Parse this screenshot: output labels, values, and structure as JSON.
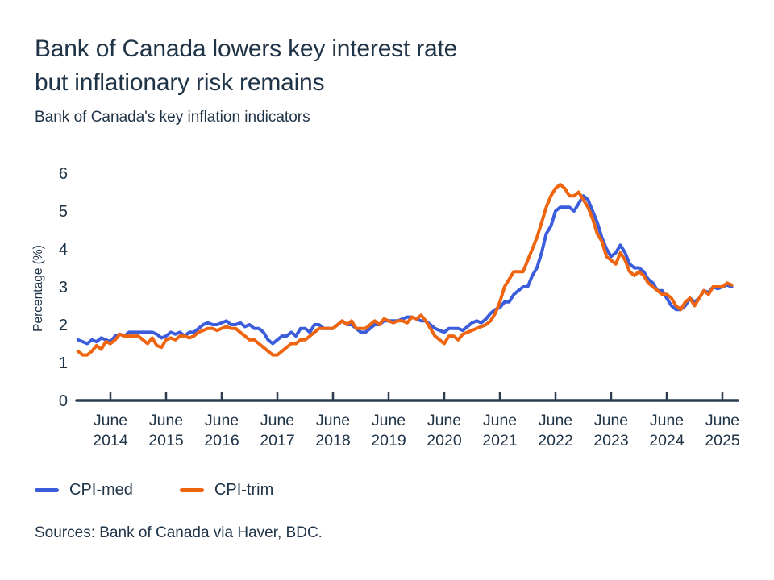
{
  "header": {
    "title_line1": "Bank of Canada lowers key interest rate",
    "title_line2": "but inflationary risk remains",
    "subtitle": "Bank of Canada's key inflation indicators"
  },
  "footer": {
    "source": "Sources: Bank of Canada via Haver, BDC."
  },
  "legend": [
    {
      "label": "CPI-med",
      "color": "#3b5cdb"
    },
    {
      "label": "CPI-trim",
      "color": "#ef650f"
    }
  ],
  "colors": {
    "text": "#203448",
    "axis": "#2c3d4f",
    "background": "#ffffff"
  },
  "chart_data": {
    "type": "line",
    "title": "Bank of Canada's key inflation indicators",
    "xlabel": "",
    "ylabel": "Percentage (%)",
    "ylim": [
      0,
      6
    ],
    "y_ticks": [
      0,
      1,
      2,
      3,
      4,
      5,
      6
    ],
    "grid": false,
    "legend_position": "bottom-left",
    "x_frequency": "monthly",
    "x_start_month": "2013-11",
    "x_end_month": "2025-08",
    "x_tick_label_month": "June",
    "x_tick_years": [
      "2014",
      "2015",
      "2016",
      "2017",
      "2018",
      "2019",
      "2020",
      "2021",
      "2022",
      "2023",
      "2024",
      "2025"
    ],
    "series": [
      {
        "name": "CPI-med",
        "color": "#3b5cdb",
        "values": [
          1.6,
          1.55,
          1.5,
          1.6,
          1.55,
          1.65,
          1.6,
          1.55,
          1.7,
          1.75,
          1.7,
          1.8,
          1.8,
          1.8,
          1.8,
          1.8,
          1.8,
          1.75,
          1.65,
          1.7,
          1.8,
          1.75,
          1.8,
          1.7,
          1.8,
          1.8,
          1.9,
          2.0,
          2.05,
          2.0,
          2.0,
          2.05,
          2.1,
          2.0,
          2.0,
          2.05,
          1.95,
          2.0,
          1.9,
          1.9,
          1.8,
          1.6,
          1.5,
          1.6,
          1.7,
          1.7,
          1.8,
          1.7,
          1.9,
          1.9,
          1.8,
          2.0,
          2.0,
          1.9,
          1.9,
          1.9,
          2.0,
          2.1,
          2.0,
          2.0,
          1.9,
          1.8,
          1.8,
          1.9,
          2.0,
          2.0,
          2.1,
          2.1,
          2.1,
          2.1,
          2.15,
          2.2,
          2.2,
          2.15,
          2.1,
          2.1,
          2.0,
          1.9,
          1.85,
          1.8,
          1.9,
          1.9,
          1.9,
          1.85,
          1.95,
          2.05,
          2.1,
          2.05,
          2.15,
          2.3,
          2.4,
          2.45,
          2.6,
          2.6,
          2.8,
          2.9,
          3.0,
          3.0,
          3.3,
          3.5,
          3.9,
          4.4,
          4.6,
          5.0,
          5.1,
          5.1,
          5.1,
          5.0,
          5.2,
          5.4,
          5.3,
          5.0,
          4.7,
          4.3,
          4.0,
          3.8,
          3.9,
          4.1,
          3.9,
          3.6,
          3.5,
          3.5,
          3.4,
          3.2,
          3.1,
          2.9,
          2.9,
          2.7,
          2.5,
          2.4,
          2.4,
          2.5,
          2.7,
          2.6,
          2.7,
          2.9,
          2.85,
          3.0,
          2.95,
          3.0,
          3.05,
          3.0
        ]
      },
      {
        "name": "CPI-trim",
        "color": "#ef650f",
        "values": [
          1.3,
          1.2,
          1.2,
          1.3,
          1.45,
          1.35,
          1.55,
          1.5,
          1.6,
          1.75,
          1.7,
          1.7,
          1.7,
          1.7,
          1.6,
          1.5,
          1.65,
          1.45,
          1.4,
          1.6,
          1.65,
          1.6,
          1.7,
          1.7,
          1.65,
          1.7,
          1.8,
          1.85,
          1.9,
          1.9,
          1.85,
          1.9,
          1.95,
          1.9,
          1.9,
          1.8,
          1.7,
          1.6,
          1.6,
          1.5,
          1.4,
          1.3,
          1.2,
          1.2,
          1.3,
          1.4,
          1.5,
          1.5,
          1.6,
          1.6,
          1.7,
          1.8,
          1.9,
          1.9,
          1.9,
          1.9,
          2.0,
          2.1,
          2.0,
          2.1,
          1.9,
          1.9,
          1.9,
          2.0,
          2.1,
          2.0,
          2.15,
          2.1,
          2.05,
          2.1,
          2.1,
          2.05,
          2.2,
          2.15,
          2.25,
          2.1,
          1.9,
          1.7,
          1.6,
          1.5,
          1.7,
          1.7,
          1.6,
          1.75,
          1.8,
          1.85,
          1.9,
          1.95,
          2.0,
          2.1,
          2.3,
          2.6,
          3.0,
          3.2,
          3.4,
          3.4,
          3.4,
          3.7,
          4.0,
          4.3,
          4.7,
          5.1,
          5.4,
          5.6,
          5.7,
          5.6,
          5.4,
          5.4,
          5.5,
          5.3,
          5.1,
          4.8,
          4.4,
          4.2,
          3.8,
          3.7,
          3.6,
          3.9,
          3.7,
          3.4,
          3.3,
          3.4,
          3.3,
          3.1,
          3.0,
          2.9,
          2.8,
          2.8,
          2.7,
          2.5,
          2.4,
          2.6,
          2.7,
          2.5,
          2.7,
          2.9,
          2.8,
          3.0,
          3.0,
          3.0,
          3.1,
          3.05
        ]
      }
    ]
  }
}
